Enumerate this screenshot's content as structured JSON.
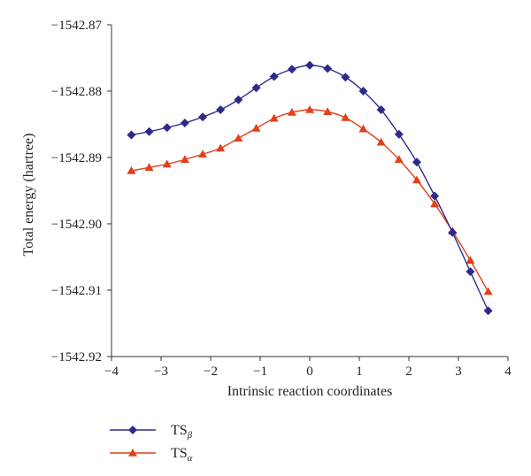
{
  "chart_data": {
    "type": "line",
    "xlabel": "Intrinsic reaction coordinates",
    "ylabel": "Total energy (hartree)",
    "xlim": [
      -4,
      4
    ],
    "ylim": [
      -1542.92,
      -1542.87
    ],
    "x_ticks": [
      -4,
      -3,
      -2,
      -1,
      0,
      1,
      2,
      3,
      4
    ],
    "y_ticks": [
      -1542.87,
      -1542.88,
      -1542.89,
      -1542.9,
      -1542.91,
      -1542.92
    ],
    "x_tick_labels": [
      "−4",
      "−3",
      "−2",
      "−1",
      "0",
      "1",
      "2",
      "3",
      "4"
    ],
    "y_tick_labels": [
      "−1542.87",
      "−1542.88",
      "−1542.89",
      "−1542.90",
      "−1542.91",
      "−1542.92"
    ],
    "grid": false,
    "legend_position": "bottom-left",
    "series": [
      {
        "name": "TSβ",
        "label_main": "TS",
        "label_sub": "β",
        "color": "#2e2a8c",
        "marker": "diamond",
        "x": [
          -3.6,
          -3.24,
          -2.88,
          -2.52,
          -2.16,
          -1.8,
          -1.44,
          -1.08,
          -0.72,
          -0.36,
          0,
          0.36,
          0.72,
          1.08,
          1.44,
          1.8,
          2.16,
          2.52,
          2.88,
          3.24,
          3.6
        ],
        "y": [
          -1542.8866,
          -1542.8861,
          -1542.8855,
          -1542.8848,
          -1542.8839,
          -1542.8828,
          -1542.8813,
          -1542.8795,
          -1542.8778,
          -1542.8767,
          -1542.8761,
          -1542.8766,
          -1542.8779,
          -1542.88,
          -1542.8828,
          -1542.8865,
          -1542.8907,
          -1542.8958,
          -1542.9013,
          -1542.9072,
          -1542.9131
        ]
      },
      {
        "name": "TSα",
        "label_main": "TS",
        "label_sub": "α",
        "color": "#e0401a",
        "marker": "triangle",
        "x": [
          -3.6,
          -3.24,
          -2.88,
          -2.52,
          -2.16,
          -1.8,
          -1.44,
          -1.08,
          -0.72,
          -0.36,
          0,
          0.36,
          0.72,
          1.08,
          1.44,
          1.8,
          2.16,
          2.52,
          2.88,
          3.24,
          3.6
        ],
        "y": [
          -1542.892,
          -1542.8915,
          -1542.891,
          -1542.8903,
          -1542.8895,
          -1542.8886,
          -1542.8871,
          -1542.8856,
          -1542.8841,
          -1542.8832,
          -1542.8828,
          -1542.8831,
          -1542.884,
          -1542.8857,
          -1542.8877,
          -1542.8903,
          -1542.8934,
          -1542.897,
          -1542.9011,
          -1542.9055,
          -1542.9102
        ]
      }
    ]
  }
}
